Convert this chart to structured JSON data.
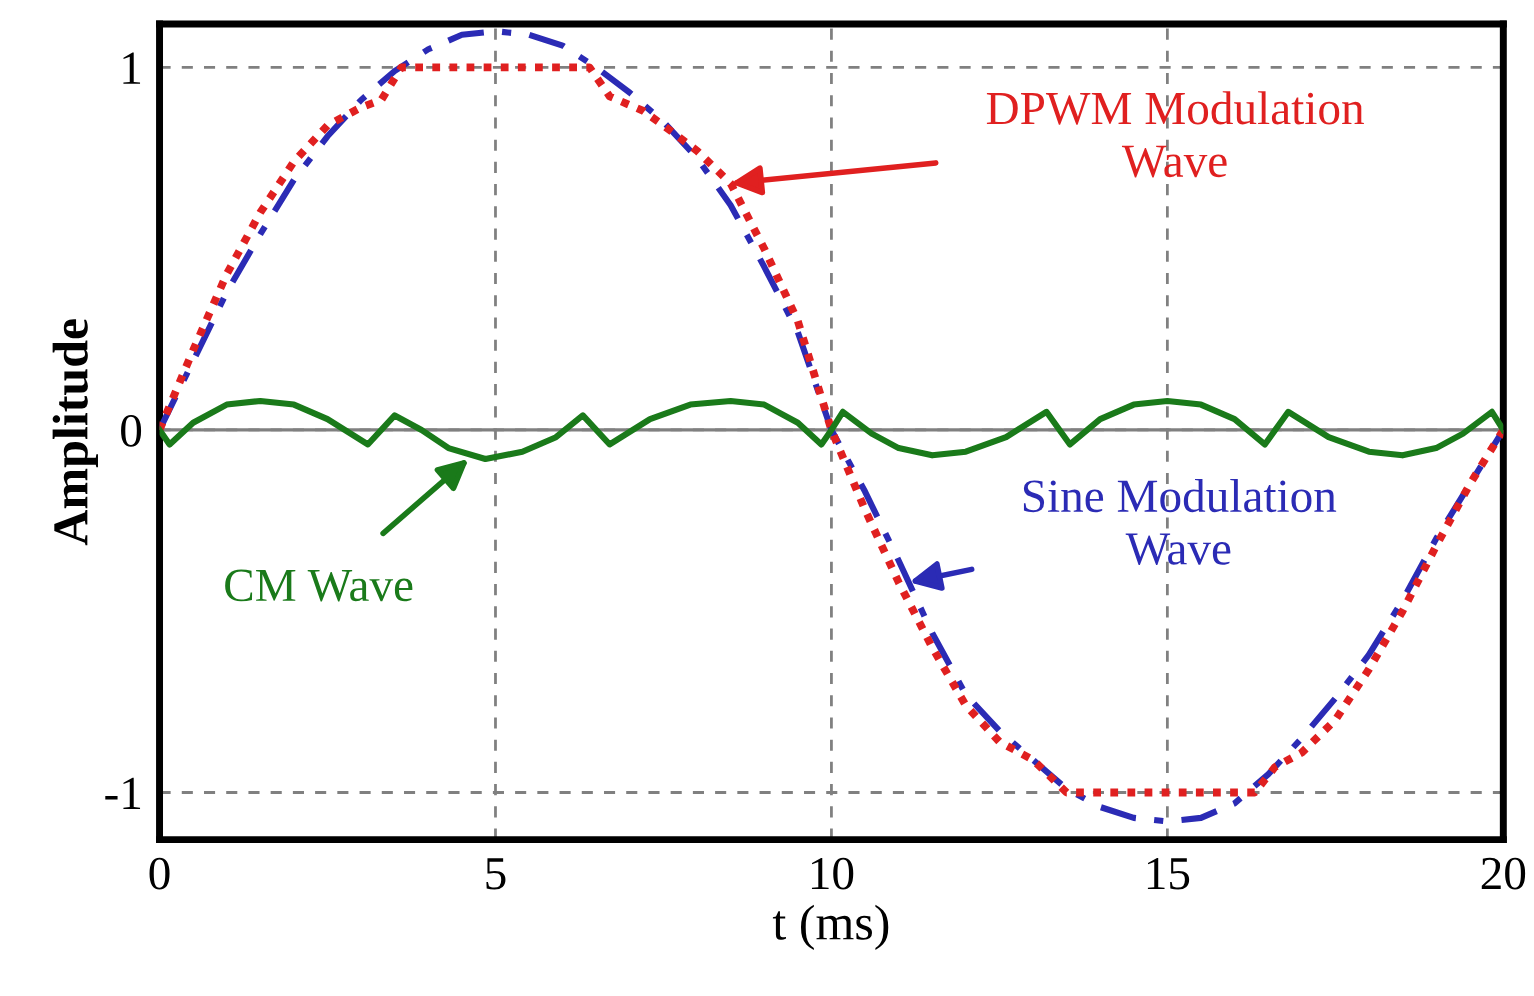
{
  "chart_data": {
    "type": "line",
    "xlabel": "t (ms)",
    "ylabel": "Amplitude",
    "xlim": [
      0,
      20
    ],
    "ylim": [
      -1.13,
      1.12
    ],
    "xticks": [
      0,
      5,
      10,
      15,
      20
    ],
    "yticks": [
      -1,
      0,
      1
    ],
    "grid": true,
    "ref_lines": [
      {
        "axis": "y",
        "value": 0,
        "color": "#808080",
        "line_style": "solid"
      }
    ],
    "series": [
      {
        "color": "#2b2bb5",
        "line_style": "dashdot",
        "x": [
          0,
          0.5,
          1,
          1.5,
          2,
          2.5,
          3,
          3.5,
          4,
          4.5,
          5,
          5.5,
          6,
          6.5,
          7,
          7.5,
          8,
          8.5,
          9,
          9.5,
          10,
          10.5,
          11,
          11.5,
          12,
          12.5,
          13,
          13.5,
          14,
          14.5,
          15,
          15.5,
          16,
          16.5,
          17,
          17.5,
          18,
          18.5,
          19,
          19.5,
          20
        ],
        "values": [
          0,
          0.19,
          0.38,
          0.54,
          0.69,
          0.81,
          0.91,
          0.99,
          1.05,
          1.09,
          1.1,
          1.09,
          1.06,
          1.0,
          0.93,
          0.85,
          0.75,
          0.62,
          0.45,
          0.27,
          0,
          -0.17,
          -0.36,
          -0.56,
          -0.73,
          -0.83,
          -0.91,
          -0.99,
          -1.04,
          -1.07,
          -1.08,
          -1.07,
          -1.03,
          -0.95,
          -0.85,
          -0.74,
          -0.62,
          -0.47,
          -0.3,
          -0.15,
          0
        ]
      },
      {
        "color": "#e02020",
        "line_style": "dotted",
        "x": [
          0,
          0.5,
          1,
          1.5,
          2,
          2.5,
          3,
          3.3,
          3.6,
          5,
          6.4,
          6.7,
          7.2,
          7.5,
          8,
          8.5,
          9,
          9.5,
          10,
          10.5,
          11,
          11.5,
          12,
          12.5,
          13,
          13.5,
          15,
          16.3,
          16.6,
          17,
          17.5,
          18,
          18.5,
          19,
          19.5,
          20
        ],
        "values": [
          0,
          0.22,
          0.43,
          0.6,
          0.74,
          0.84,
          0.89,
          0.91,
          1,
          1,
          1,
          0.92,
          0.88,
          0.84,
          0.77,
          0.68,
          0.5,
          0.3,
          0,
          -0.22,
          -0.42,
          -0.6,
          -0.76,
          -0.86,
          -0.91,
          -1,
          -1,
          -1,
          -0.93,
          -0.89,
          -0.8,
          -0.66,
          -0.5,
          -0.32,
          -0.15,
          0
        ]
      },
      {
        "color": "#1a7a1a",
        "line_style": "solid",
        "x": [
          0,
          0.15,
          0.5,
          1,
          1.5,
          2,
          2.5,
          3.1,
          3.5,
          3.9,
          4.3,
          4.85,
          5.4,
          5.9,
          6.3,
          6.7,
          7.3,
          7.9,
          8.5,
          9,
          9.5,
          9.85,
          10,
          10.17,
          10.6,
          11,
          11.5,
          12,
          12.6,
          13.2,
          13.55,
          14,
          14.5,
          15,
          15.5,
          16,
          16.45,
          16.8,
          17.4,
          18,
          18.5,
          19,
          19.4,
          19.83,
          20
        ],
        "values": [
          0,
          -0.04,
          0.02,
          0.07,
          0.08,
          0.07,
          0.03,
          -0.04,
          0.04,
          0,
          -0.05,
          -0.08,
          -0.06,
          -0.02,
          0.04,
          -0.04,
          0.03,
          0.07,
          0.08,
          0.07,
          0.02,
          -0.04,
          0,
          0.05,
          -0.01,
          -0.05,
          -0.07,
          -0.06,
          -0.02,
          0.05,
          -0.04,
          0.03,
          0.07,
          0.08,
          0.07,
          0.03,
          -0.04,
          0.05,
          -0.02,
          -0.06,
          -0.07,
          -0.05,
          -0.01,
          0.05,
          0
        ]
      }
    ],
    "annotations": [
      {
        "text": "DPWM Modulation\nWave",
        "x": 8.5,
        "y": 0.68
      },
      {
        "text": "Sine Modulation\nWave",
        "x": 11.16,
        "y": -0.42
      },
      {
        "text": "CM Wave",
        "x": 4.6,
        "y": -0.08
      }
    ]
  }
}
